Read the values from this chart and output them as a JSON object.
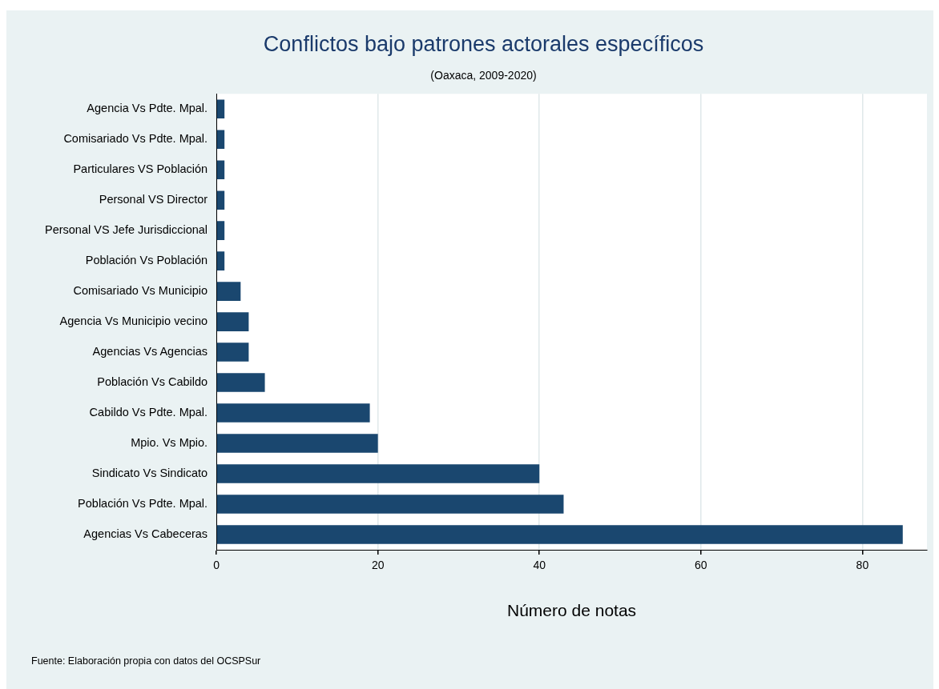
{
  "chart_data": {
    "type": "bar",
    "orientation": "horizontal",
    "title": "Conflictos bajo patrones actorales específicos",
    "subtitle": "(Oaxaca, 2009-2020)",
    "xlabel": "Número de notas",
    "categories": [
      "Agencia Vs Pdte. Mpal.",
      "Comisariado Vs Pdte. Mpal.",
      "Particulares VS Población",
      "Personal VS Director",
      "Personal VS Jefe Jurisdiccional",
      "Población Vs Población",
      "Comisariado Vs Municipio",
      "Agencia Vs Municipio vecino",
      "Agencias Vs Agencias",
      "Población Vs Cabildo",
      "Cabildo Vs Pdte. Mpal.",
      "Mpio. Vs Mpio.",
      "Sindicato Vs Sindicato",
      "Población Vs Pdte. Mpal.",
      "Agencias Vs Cabeceras"
    ],
    "values": [
      1,
      1,
      1,
      1,
      1,
      1,
      3,
      4,
      4,
      6,
      19,
      20,
      40,
      43,
      85
    ],
    "color": "#1a476f",
    "xlim": [
      0,
      88
    ],
    "xticks": [
      0,
      20,
      40,
      60,
      80
    ],
    "grid": "x",
    "legend": false,
    "annotations": [
      "Fuente: Elaboración propia con datos del OCSPSur"
    ]
  }
}
